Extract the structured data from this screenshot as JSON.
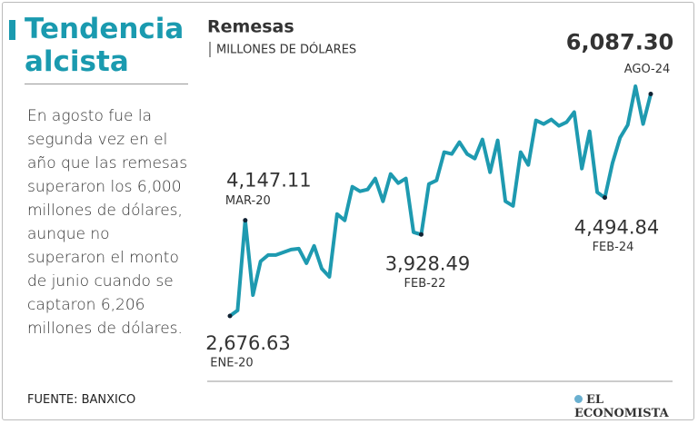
{
  "header": {
    "title": "Tendencia alcista",
    "body": "En agosto fue la segunda vez en el año que las remesas superaron los 6,000 millones de dólares, aunque no superaron el monto de junio cuando se captaron 6,206 millones de dólares."
  },
  "footer": {
    "source": "FUENTE: BANXICO",
    "logo": "EL ECONOMISTA"
  },
  "chart_data": {
    "type": "line",
    "title": "Remesas",
    "subtitle": "MILLONES DE DÓLARES",
    "color": "#1e9ab0",
    "categories": [
      "ENE-20",
      null,
      "MAR-20",
      null,
      null,
      null,
      null,
      null,
      null,
      null,
      null,
      null,
      null,
      null,
      null,
      null,
      null,
      null,
      null,
      null,
      null,
      null,
      null,
      null,
      null,
      "FEB-22",
      null,
      null,
      null,
      null,
      null,
      null,
      null,
      null,
      null,
      null,
      null,
      null,
      null,
      null,
      null,
      null,
      null,
      null,
      null,
      null,
      null,
      null,
      null,
      "FEB-24",
      null,
      null,
      null,
      null,
      null,
      "AGO-24"
    ],
    "values": [
      2676.63,
      2762,
      4147.11,
      2998,
      3515,
      3613,
      3613,
      3655,
      3697,
      3711,
      3487,
      3753,
      3404,
      3278,
      4242,
      4145,
      4662,
      4592,
      4620,
      4788,
      4438,
      4857,
      4718,
      4788,
      3963,
      3928.49,
      4704,
      4760,
      5193,
      5165,
      5347,
      5165,
      5095,
      5389,
      4885,
      5375,
      4438,
      4368,
      5193,
      4997,
      5682,
      5626,
      5696,
      5598,
      5654,
      5808,
      4941,
      5514,
      4578,
      4494.84,
      5025,
      5417,
      5612,
      6206,
      5626,
      6087.3
    ],
    "value_labels": [
      "2,676.63",
      null,
      "4,147.11",
      null,
      null,
      null,
      null,
      null,
      null,
      null,
      null,
      null,
      null,
      null,
      null,
      null,
      null,
      null,
      null,
      null,
      null,
      null,
      null,
      null,
      null,
      "3,928.49",
      null,
      null,
      null,
      null,
      null,
      null,
      null,
      null,
      null,
      null,
      null,
      null,
      null,
      null,
      null,
      null,
      null,
      null,
      null,
      null,
      null,
      null,
      null,
      "4,494.84",
      null,
      null,
      null,
      null,
      null,
      "6,087.30"
    ]
  }
}
